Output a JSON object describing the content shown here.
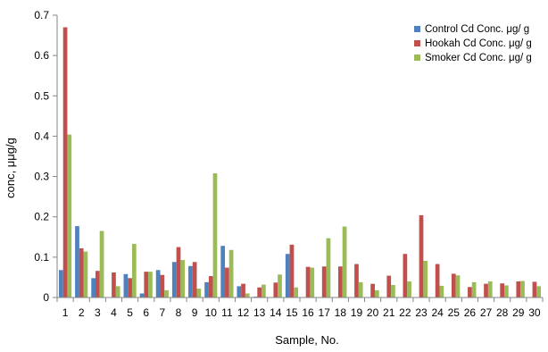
{
  "chart_data": {
    "type": "bar",
    "title": "",
    "xlabel": "Sample, No.",
    "ylabel": "conc, μμg/g",
    "ylim": [
      0,
      0.7
    ],
    "yticks": [
      "0",
      "0.1",
      "0.2",
      "0.3",
      "0.4",
      "0.5",
      "0.6",
      "0.7"
    ],
    "ytick_values": [
      0,
      0.1,
      0.2,
      0.3,
      0.4,
      0.5,
      0.6,
      0.7
    ],
    "grid": false,
    "legend_position": "top-right",
    "categories": [
      "1",
      "2",
      "3",
      "4",
      "5",
      "6",
      "7",
      "8",
      "9",
      "10",
      "11",
      "12",
      "13",
      "14",
      "15",
      "16",
      "17",
      "18",
      "19",
      "20",
      "21",
      "22",
      "23",
      "24",
      "25",
      "26",
      "27",
      "28",
      "29",
      "30"
    ],
    "series": [
      {
        "name": "Control Cd Conc. μg/ g",
        "color": "#4f81bd",
        "values": [
          0.068,
          0.177,
          0.048,
          0.0,
          0.058,
          0.01,
          0.068,
          0.088,
          0.078,
          0.038,
          0.128,
          0.028,
          0.002,
          0.0,
          0.108,
          0.0,
          0.0,
          0.0,
          0.0,
          0.0,
          0.0,
          0.0,
          0.0,
          0.0,
          0.0,
          0.0,
          0.0,
          0.0,
          0.0,
          0.0
        ]
      },
      {
        "name": "Hookah Cd Conc. μg/ g",
        "color": "#c0504d",
        "values": [
          0.67,
          0.122,
          0.066,
          0.062,
          0.048,
          0.064,
          0.056,
          0.125,
          0.088,
          0.053,
          0.074,
          0.034,
          0.025,
          0.037,
          0.131,
          0.076,
          0.077,
          0.077,
          0.083,
          0.034,
          0.054,
          0.108,
          0.204,
          0.083,
          0.059,
          0.026,
          0.034,
          0.035,
          0.04,
          0.039
        ]
      },
      {
        "name": "Smoker Cd Conc. μg/ g",
        "color": "#9bbb59",
        "values": [
          0.404,
          0.114,
          0.165,
          0.028,
          0.133,
          0.064,
          0.018,
          0.093,
          0.022,
          0.308,
          0.118,
          0.01,
          0.032,
          0.057,
          0.025,
          0.074,
          0.147,
          0.176,
          0.038,
          0.018,
          0.031,
          0.04,
          0.091,
          0.029,
          0.055,
          0.038,
          0.04,
          0.03,
          0.041,
          0.028
        ]
      }
    ]
  }
}
